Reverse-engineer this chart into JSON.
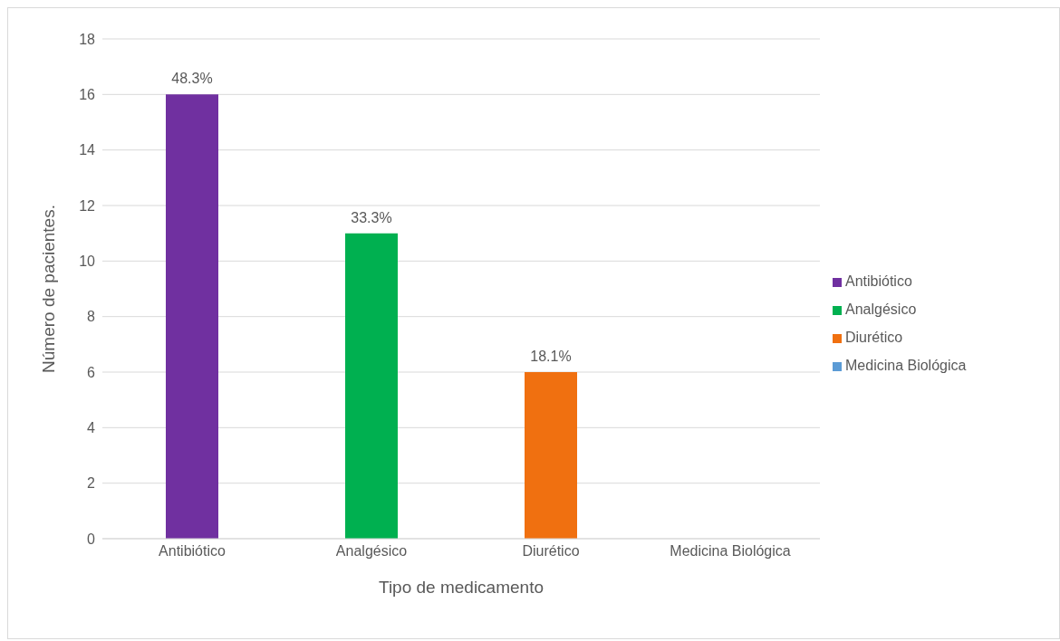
{
  "chart_data": {
    "type": "bar",
    "xlabel": "Tipo de medicamento",
    "ylabel": "Número de pacientes.",
    "categories": [
      "Antibiótico",
      "Analgésico",
      "Diurético",
      "Medicina Biológica"
    ],
    "series": [
      {
        "name": "Antibiótico",
        "color": "#7030a0",
        "values": [
          16,
          null,
          null,
          null
        ]
      },
      {
        "name": "Analgésico",
        "color": "#00b050",
        "values": [
          null,
          11,
          null,
          null
        ]
      },
      {
        "name": "Diurético",
        "color": "#f07010",
        "values": [
          null,
          null,
          6,
          null
        ]
      },
      {
        "name": "Medicina Biológica",
        "color": "#5b9bd5",
        "values": [
          null,
          null,
          null,
          0
        ]
      }
    ],
    "stacked": true,
    "annotations": [
      {
        "text": "48.3%",
        "x": "Antibiótico",
        "y": 16
      },
      {
        "text": "33.3%",
        "x": "Analgésico",
        "y": 11
      },
      {
        "text": "18.1%",
        "x": "Diurético",
        "y": 6
      }
    ],
    "ylim": [
      0,
      18
    ],
    "yticks": [
      0,
      2,
      4,
      6,
      8,
      10,
      12,
      14,
      16,
      18
    ],
    "grid": "y",
    "legend": "right"
  }
}
